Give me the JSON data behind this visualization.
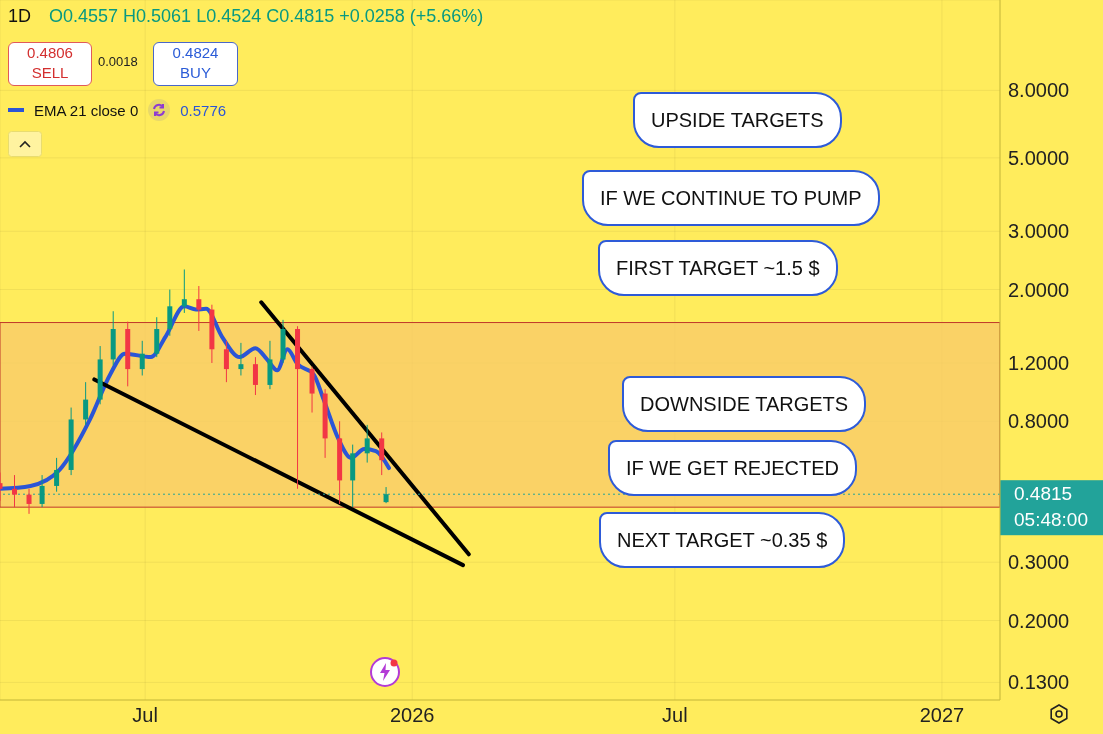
{
  "chart_data": {
    "type": "candlestick",
    "title": "1D",
    "subtitle": "O0.4557 H0.5061 L0.4524 C0.4815 +0.0258 (+5.66%)",
    "x": [
      "2025-03-23",
      "2025-04-02",
      "2025-04-12",
      "2025-04-21",
      "2025-05-01",
      "2025-05-11",
      "2025-05-21",
      "2025-05-31",
      "2025-06-09",
      "2025-06-19",
      "2025-06-29",
      "2025-07-09",
      "2025-07-18",
      "2025-07-28",
      "2025-08-07",
      "2025-08-16",
      "2025-08-26",
      "2025-09-05",
      "2025-09-15",
      "2025-09-25",
      "2025-10-04",
      "2025-10-14",
      "2025-10-24",
      "2025-11-02",
      "2025-11-12",
      "2025-11-21",
      "2025-12-01",
      "2025-12-11",
      "2025-12-14"
    ],
    "ohlc": [
      [
        0.52,
        0.56,
        0.46,
        0.5
      ],
      [
        0.5,
        0.55,
        0.44,
        0.48
      ],
      [
        0.48,
        0.5,
        0.42,
        0.45
      ],
      [
        0.45,
        0.55,
        0.44,
        0.51
      ],
      [
        0.51,
        0.62,
        0.49,
        0.57
      ],
      [
        0.57,
        0.88,
        0.55,
        0.81
      ],
      [
        0.81,
        1.05,
        0.78,
        0.93
      ],
      [
        0.93,
        1.35,
        0.9,
        1.23
      ],
      [
        1.23,
        1.72,
        1.18,
        1.52
      ],
      [
        1.52,
        1.6,
        1.02,
        1.15
      ],
      [
        1.15,
        1.4,
        1.1,
        1.28
      ],
      [
        1.28,
        1.65,
        1.25,
        1.52
      ],
      [
        1.52,
        2.0,
        1.45,
        1.78
      ],
      [
        1.78,
        2.3,
        1.7,
        1.87
      ],
      [
        1.87,
        2.05,
        1.5,
        1.74
      ],
      [
        1.74,
        1.8,
        1.2,
        1.32
      ],
      [
        1.32,
        1.4,
        1.05,
        1.15
      ],
      [
        1.15,
        1.38,
        1.1,
        1.19
      ],
      [
        1.19,
        1.25,
        0.96,
        1.03
      ],
      [
        1.03,
        1.4,
        1.0,
        1.23
      ],
      [
        1.23,
        1.62,
        1.2,
        1.52
      ],
      [
        1.52,
        1.55,
        0.5,
        1.15
      ],
      [
        1.15,
        1.17,
        0.85,
        0.97
      ],
      [
        0.97,
        1.0,
        0.62,
        0.71
      ],
      [
        0.71,
        0.8,
        0.45,
        0.53
      ],
      [
        0.53,
        0.68,
        0.44,
        0.64
      ],
      [
        0.64,
        0.78,
        0.6,
        0.71
      ],
      [
        0.71,
        0.74,
        0.55,
        0.61
      ],
      [
        0.4557,
        0.5061,
        0.4524,
        0.4815
      ]
    ],
    "colors": [
      "#f23645",
      "#f23645",
      "#f23645",
      "#089981",
      "#089981",
      "#089981",
      "#089981",
      "#089981",
      "#089981",
      "#f23645",
      "#089981",
      "#089981",
      "#089981",
      "#089981",
      "#f23645",
      "#f23645",
      "#f23645",
      "#089981",
      "#f23645",
      "#089981",
      "#089981",
      "#f23645",
      "#f23645",
      "#f23645",
      "#f23645",
      "#089981",
      "#089981",
      "#f23645",
      "#089981"
    ],
    "series": [
      {
        "type": "line",
        "name": "EMA 21 close 0",
        "color": "#2b55d6",
        "x": [
          "2025-03-23",
          "2025-04-13",
          "2025-05-03",
          "2025-05-24",
          "2025-06-07",
          "2025-06-17",
          "2025-07-05",
          "2025-07-15",
          "2025-07-28",
          "2025-08-05",
          "2025-08-12",
          "2025-08-23",
          "2025-09-04",
          "2025-09-15",
          "2025-09-23",
          "2025-09-30",
          "2025-10-07",
          "2025-10-14",
          "2025-10-25",
          "2025-11-01",
          "2025-11-11",
          "2025-11-20",
          "2025-11-29",
          "2025-12-07",
          "2025-12-16"
        ],
        "values": [
          0.5,
          0.51,
          0.57,
          0.81,
          1.11,
          1.28,
          1.25,
          1.44,
          1.78,
          1.74,
          1.75,
          1.44,
          1.25,
          1.33,
          1.23,
          1.14,
          1.32,
          1.19,
          1.11,
          0.93,
          0.71,
          0.62,
          0.66,
          0.65,
          0.5776
        ]
      },
      {
        "type": "line",
        "color": "#000000",
        "x": [
          "2025-09-19",
          "2026-02-09"
        ],
        "values": [
          1.83,
          0.317
        ]
      },
      {
        "type": "line",
        "color": "#000000",
        "x": [
          "2025-05-27",
          "2026-02-05"
        ],
        "values": [
          1.07,
          0.294
        ]
      }
    ],
    "xlim": [
      "2025-03-23",
      "2027-02-10"
    ],
    "xticks": [
      {
        "value": "2025-07-01",
        "label": "Jul"
      },
      {
        "value": "2026-01-01",
        "label": "2026"
      },
      {
        "value": "2026-07-01",
        "label": "Jul"
      },
      {
        "value": "2027-01-01",
        "label": "2027"
      }
    ],
    "ylim": [
      0.115,
      15
    ],
    "yticks": [
      {
        "value": 8,
        "label": "8.0000"
      },
      {
        "value": 5,
        "label": "5.0000"
      },
      {
        "value": 3,
        "label": "3.0000"
      },
      {
        "value": 2,
        "label": "2.0000"
      },
      {
        "value": 1.2,
        "label": "1.2000"
      },
      {
        "value": 0.8,
        "label": "0.8000"
      },
      {
        "value": 0.3,
        "label": "0.3000"
      },
      {
        "value": 0.2,
        "label": "0.2000"
      },
      {
        "value": 0.13,
        "label": "0.1300"
      }
    ],
    "log": "y",
    "grid": true,
    "legend": "top left",
    "line_style": "solid",
    "bands": [
      {
        "axis": "y",
        "from": 0.44,
        "to": 1.59,
        "color": "#f8c96a"
      }
    ],
    "ref_lines": [
      {
        "axis": "y",
        "value": 0.4815,
        "label": "0.4815",
        "color": "#22a39a",
        "line_style": "dotted"
      }
    ],
    "annotations": [
      "0.4806",
      "SELL",
      "0.0018",
      "0.4824",
      "BUY",
      "0.5776",
      "UPSIDE TARGETS",
      "IF WE CONTINUE TO PUMP",
      "FIRST TARGET ~1.5 $",
      "DOWNSIDE TARGETS",
      "IF WE GET REJECTED",
      "NEXT TARGET ~0.35 $",
      "05:48:00"
    ]
  }
}
